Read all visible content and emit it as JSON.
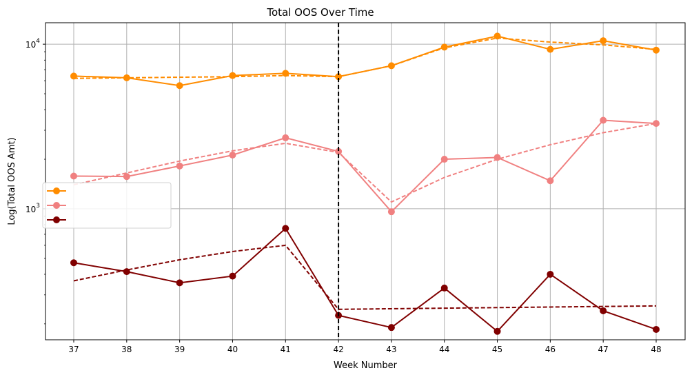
{
  "chart_data": {
    "type": "line",
    "title": "Total OOS Over Time",
    "xlabel": "Week Number",
    "ylabel": "Log(Total OOS Amt)",
    "yscale": "log",
    "ylim": [
      160,
      13500
    ],
    "x": [
      37,
      38,
      39,
      40,
      41,
      42,
      43,
      44,
      45,
      46,
      47,
      48
    ],
    "grid": true,
    "vline": {
      "x": 42,
      "style": "dashed",
      "color": "#000000"
    },
    "legend": {
      "placement": "center-left",
      "entries": [
        "",
        "",
        ""
      ]
    },
    "y_tick_labels": [
      {
        "value": 1000,
        "base": "10",
        "exp": "3"
      },
      {
        "value": 10000,
        "base": "10",
        "exp": "4"
      }
    ],
    "series": [
      {
        "color": "#ff8c00",
        "values": [
          6400,
          6250,
          5600,
          6450,
          6650,
          6350,
          7400,
          9600,
          11200,
          9300,
          10500,
          9200
        ],
        "trend": [
          6200,
          6250,
          6300,
          6350,
          6450,
          6350,
          7400,
          9500,
          10900,
          10300,
          9900,
          9300
        ]
      },
      {
        "color": "#f08080",
        "values": [
          1580,
          1570,
          1820,
          2120,
          2700,
          2230,
          960,
          2000,
          2050,
          1480,
          3450,
          3300
        ],
        "trend": [
          1400,
          1650,
          1950,
          2250,
          2500,
          2200,
          1100,
          1550,
          2000,
          2450,
          2900,
          3300
        ]
      },
      {
        "color": "#800000",
        "values": [
          470,
          415,
          355,
          390,
          760,
          225,
          190,
          330,
          180,
          400,
          240,
          185
        ],
        "trend": [
          365,
          425,
          490,
          550,
          600,
          245,
          247,
          249,
          251,
          253,
          255,
          257
        ]
      }
    ]
  }
}
